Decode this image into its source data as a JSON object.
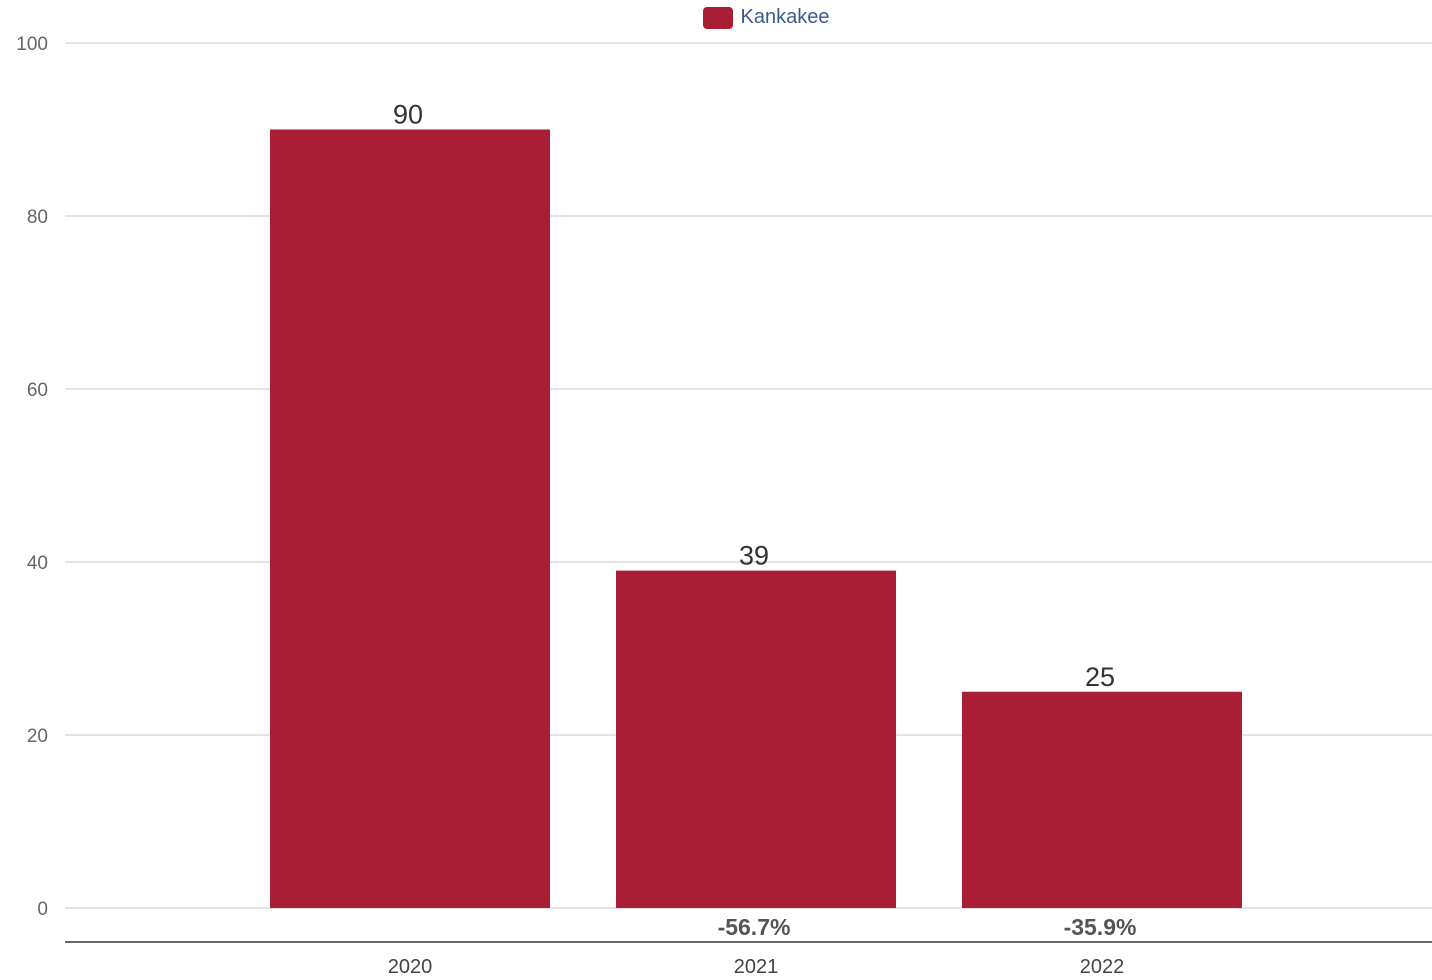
{
  "chart_data": {
    "type": "bar",
    "categories": [
      "2020",
      "2021",
      "2022"
    ],
    "series": [
      {
        "name": "Kankakee",
        "values": [
          90,
          39,
          25
        ],
        "color": "#a91e35"
      }
    ],
    "value_labels": [
      "90",
      "39",
      "25"
    ],
    "change_labels": [
      "",
      "-56.7%",
      "-35.9%"
    ],
    "ylim": [
      0,
      100
    ],
    "yticks": [
      0,
      20,
      40,
      60,
      80,
      100
    ],
    "grid": true,
    "legend": "top-center"
  }
}
